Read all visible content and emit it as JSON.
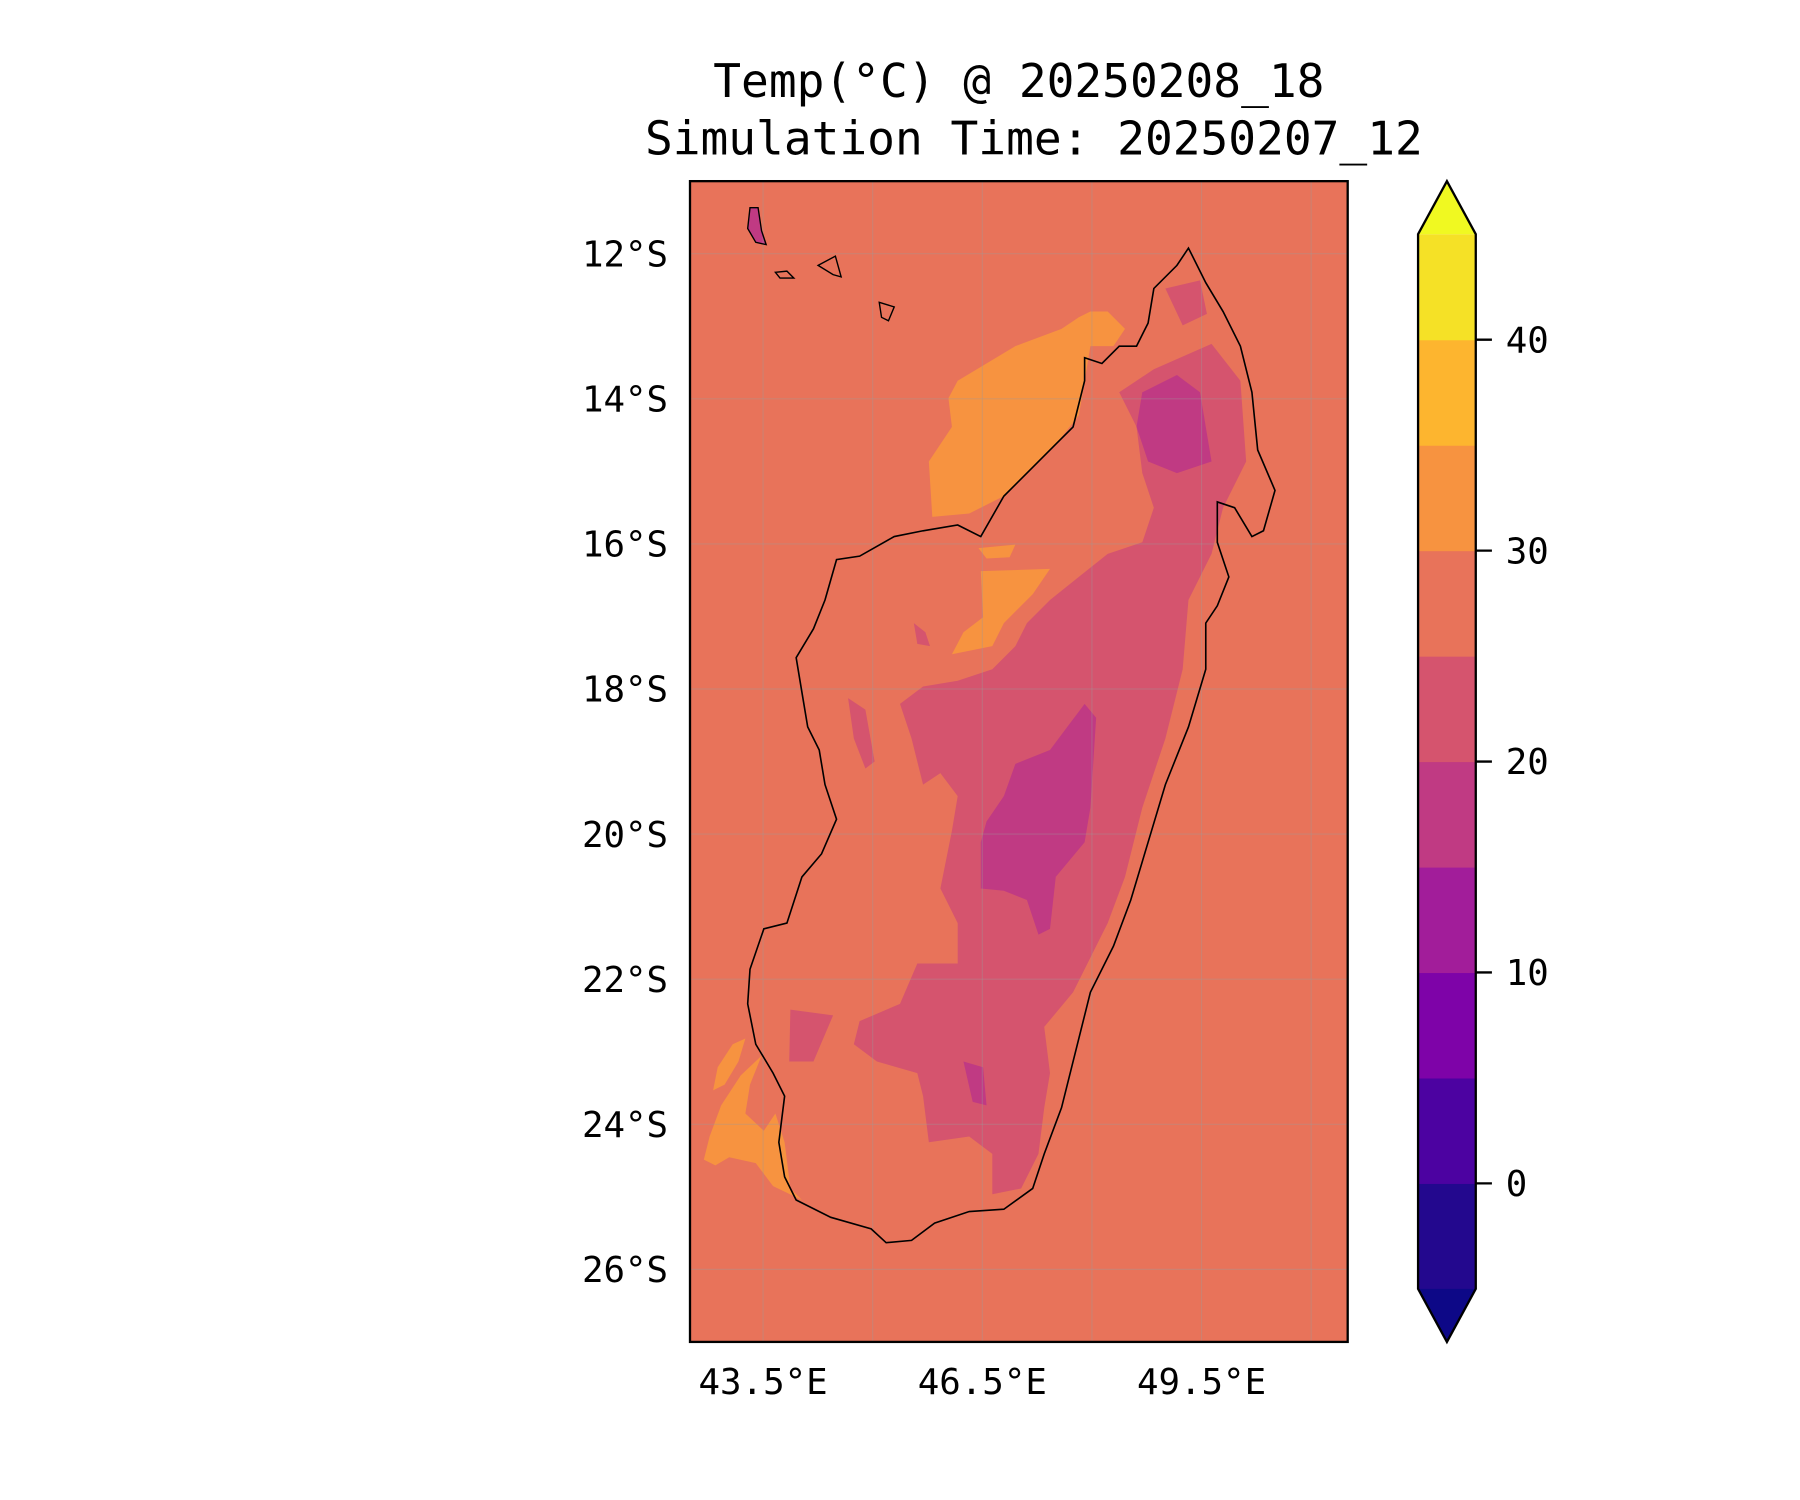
{
  "chart_data": {
    "type": "heatmap",
    "title_line1": "Temp(°C) @ 20250208_18",
    "title_line2": "Simulation Time: 20250207_12",
    "variable": "Temp(°C)",
    "valid_time": "20250208_18",
    "simulation_time": "20250207_12",
    "extent": {
      "lon": [
        42.5,
        51.5
      ],
      "lat": [
        -27,
        -11
      ]
    },
    "y_ticks": [
      {
        "value": -12,
        "label": "12°S"
      },
      {
        "value": -14,
        "label": "14°S"
      },
      {
        "value": -16,
        "label": "16°S"
      },
      {
        "value": -18,
        "label": "18°S"
      },
      {
        "value": -20,
        "label": "20°S"
      },
      {
        "value": -22,
        "label": "22°S"
      },
      {
        "value": -24,
        "label": "24°S"
      },
      {
        "value": -26,
        "label": "26°S"
      }
    ],
    "x_ticks": [
      {
        "value": 43.5,
        "label": "43.5°E"
      },
      {
        "value": 46.5,
        "label": "46.5°E"
      },
      {
        "value": 49.5,
        "label": "49.5°E"
      }
    ],
    "gridlines": true,
    "colorbar": {
      "levels": [
        -5,
        0,
        5,
        10,
        15,
        20,
        25,
        30,
        35,
        40,
        45
      ],
      "colors": [
        "#23088e",
        "#4c02a1",
        "#7e03a8",
        "#a21d9a",
        "#c03a83",
        "#d5546e",
        "#e8735a",
        "#f79340",
        "#fdb52f",
        "#f5e126"
      ],
      "under_color": "#0d0887",
      "over_color": "#f0f921",
      "tick_labels": [
        {
          "value": 0,
          "label": "0"
        },
        {
          "value": 10,
          "label": "10"
        },
        {
          "value": 20,
          "label": "20"
        },
        {
          "value": 30,
          "label": "30"
        },
        {
          "value": 40,
          "label": "40"
        }
      ],
      "placement": "right"
    },
    "background_band": "25-30",
    "regions": [
      {
        "band": "30-35",
        "area": "northwest coast / Mozambique Channel"
      },
      {
        "band": "30-35",
        "area": "west interior near 16.5°S"
      },
      {
        "band": "30-35",
        "area": "southwest coast offshore"
      },
      {
        "band": "20-25",
        "area": "central highlands"
      },
      {
        "band": "15-20",
        "area": "central highlands core"
      },
      {
        "band": "15-20",
        "area": "northern highlands"
      }
    ]
  }
}
